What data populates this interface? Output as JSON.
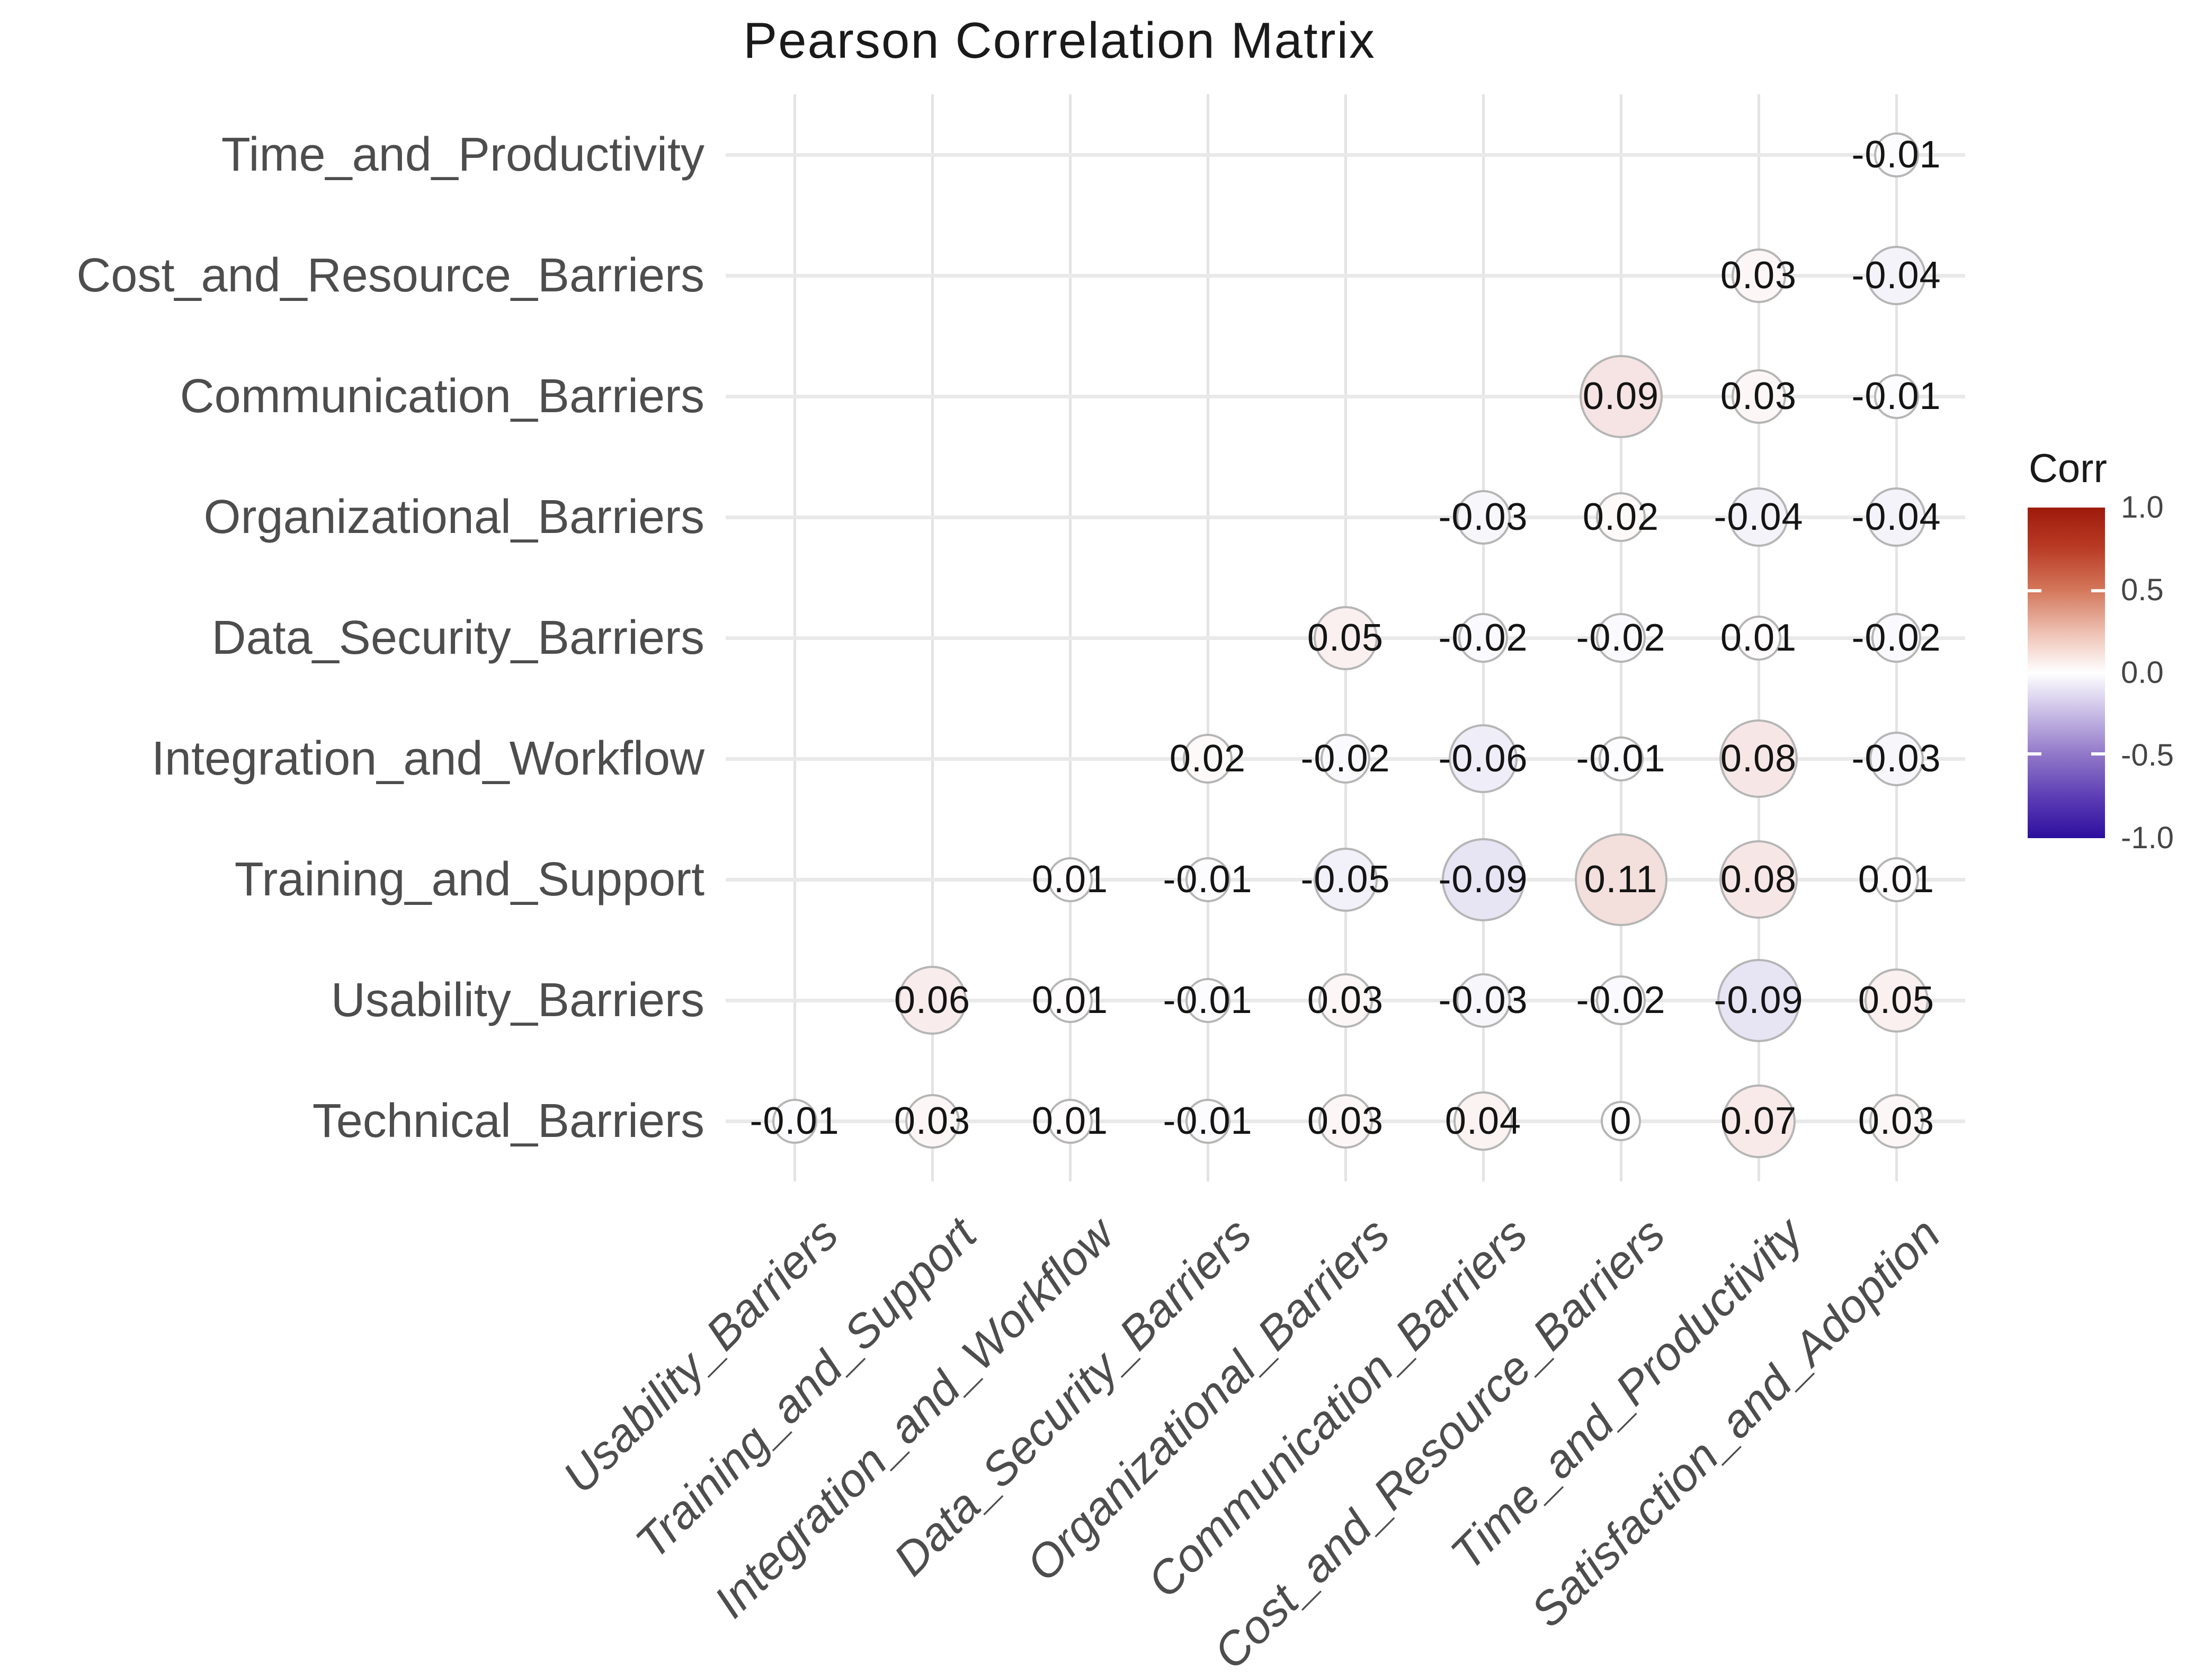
{
  "title": "Pearson Correlation Matrix",
  "legend": {
    "title": "Corr",
    "ticks": [
      "1.0",
      "0.5",
      "0.0",
      "-0.5",
      "-1.0"
    ],
    "range": [
      -1,
      1
    ]
  },
  "colors": {
    "positive_end": "#a81c0c",
    "negative_end": "#3414a3",
    "zero": "#ffffff",
    "circle_stroke": "#b5b5b5",
    "gridline": "#e3e3e3",
    "axis_label": "#4d4d4d",
    "value_text": "#141414",
    "title_text": "#1a1a1a"
  },
  "chart_data": {
    "type": "heatmap",
    "variant": "correlation-bubble-matrix-upper-triangle",
    "title": "Pearson Correlation Matrix",
    "legend_title": "Corr",
    "color_range": [
      -1,
      1
    ],
    "grid": true,
    "columns": [
      "Usability_Barriers",
      "Training_and_Support",
      "Integration_and_Workflow",
      "Data_Security_Barriers",
      "Organizational_Barriers",
      "Communication_Barriers",
      "Cost_and_Resource_Barriers",
      "Time_and_Productivity",
      "Satisfaction_and_Adoption"
    ],
    "rows": [
      {
        "label": "Time_and_Productivity",
        "values": [
          null,
          null,
          null,
          null,
          null,
          null,
          null,
          null,
          -0.01
        ]
      },
      {
        "label": "Cost_and_Resource_Barriers",
        "values": [
          null,
          null,
          null,
          null,
          null,
          null,
          null,
          0.03,
          -0.04
        ]
      },
      {
        "label": "Communication_Barriers",
        "values": [
          null,
          null,
          null,
          null,
          null,
          null,
          0.09,
          0.03,
          -0.01
        ]
      },
      {
        "label": "Organizational_Barriers",
        "values": [
          null,
          null,
          null,
          null,
          null,
          -0.03,
          0.02,
          -0.04,
          -0.04
        ]
      },
      {
        "label": "Data_Security_Barriers",
        "values": [
          null,
          null,
          null,
          null,
          0.05,
          -0.02,
          -0.02,
          0.01,
          -0.02
        ]
      },
      {
        "label": "Integration_and_Workflow",
        "values": [
          null,
          null,
          null,
          0.02,
          -0.02,
          -0.06,
          -0.01,
          0.08,
          -0.03
        ]
      },
      {
        "label": "Training_and_Support",
        "values": [
          null,
          null,
          0.01,
          -0.01,
          -0.05,
          -0.09,
          0.11,
          0.08,
          0.01
        ]
      },
      {
        "label": "Usability_Barriers",
        "values": [
          null,
          0.06,
          0.01,
          -0.01,
          0.03,
          -0.03,
          -0.02,
          -0.09,
          0.05
        ]
      },
      {
        "label": "Technical_Barriers",
        "values": [
          -0.01,
          0.03,
          0.01,
          -0.01,
          0.03,
          0.04,
          0,
          0.07,
          0.03
        ]
      }
    ]
  }
}
